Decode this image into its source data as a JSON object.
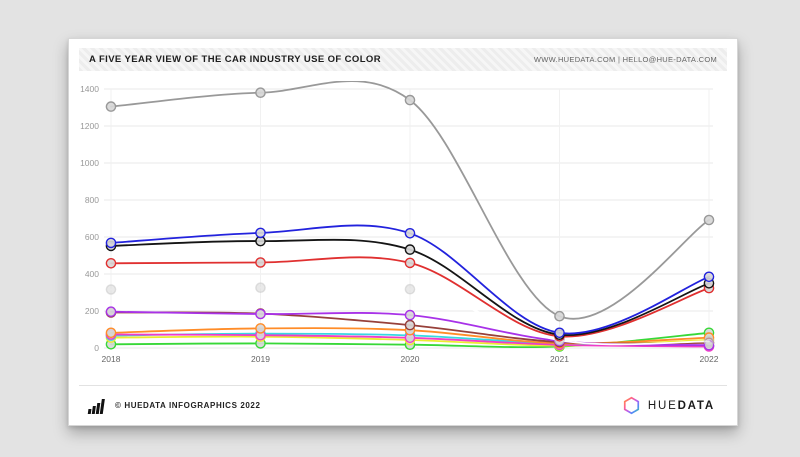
{
  "page": {
    "background": "#e3e3e3",
    "card_background": "#ffffff"
  },
  "header": {
    "title": "A FIVE YEAR VIEW OF THE CAR INDUSTRY USE OF COLOR",
    "contact": "WWW.HUEDATA.COM | HELLO@HUE-DATA.COM"
  },
  "footer": {
    "copyright": "© HUEDATA INFOGRAPHICS 2022",
    "logo_text_light": "HUE",
    "logo_text_bold": "DATA",
    "logo_hexagon_colors": [
      "#ff9a3c",
      "#ff5e8e",
      "#b85ef0",
      "#4f8ef7",
      "#3ecf8e"
    ]
  },
  "chart_data": {
    "type": "line",
    "title": "A FIVE YEAR VIEW OF THE CAR INDUSTRY USE OF COLOR",
    "xlabel": "",
    "ylabel": "",
    "categories": [
      "2018",
      "2019",
      "2020",
      "2021",
      "2022"
    ],
    "y_ticks": [
      0,
      200,
      400,
      600,
      800,
      1000,
      1200,
      1400
    ],
    "ylim": [
      0,
      1400
    ],
    "grid": true,
    "legend": "none",
    "marker_fill": "#d7d7d7",
    "grid_color_h": "#e8e8e8",
    "grid_color_v": "#f1f1f1",
    "tick_color_y": "#999999",
    "tick_color_x": "#666666",
    "series": [
      {
        "name": "gray",
        "color": "#999999",
        "values": [
          1305,
          1380,
          1340,
          172,
          692
        ]
      },
      {
        "name": "blue",
        "color": "#2222dd",
        "values": [
          568,
          622,
          620,
          82,
          385
        ]
      },
      {
        "name": "black",
        "color": "#151515",
        "values": [
          552,
          578,
          532,
          72,
          350
        ]
      },
      {
        "name": "red",
        "color": "#e03030",
        "values": [
          458,
          462,
          460,
          63,
          324
        ]
      },
      {
        "name": "white",
        "color": "#ffffff",
        "marker_stroke": "#c6c6c6",
        "marker_opacity": 0.55,
        "values": [
          316,
          326,
          318,
          42,
          36
        ]
      },
      {
        "name": "purple",
        "color": "#a832e8",
        "values": [
          196,
          184,
          178,
          38,
          15
        ]
      },
      {
        "name": "maroon",
        "color": "#97403a",
        "values": [
          192,
          186,
          124,
          32,
          28
        ]
      },
      {
        "name": "orange",
        "color": "#ff8c28",
        "values": [
          82,
          106,
          96,
          26,
          56
        ]
      },
      {
        "name": "magenta",
        "color": "#f03cc8",
        "values": [
          73,
          69,
          55,
          17,
          8
        ]
      },
      {
        "name": "cyan",
        "color": "#38d8e0",
        "values": [
          67,
          78,
          68,
          22,
          10
        ]
      },
      {
        "name": "yellow",
        "color": "#ecec30",
        "values": [
          56,
          61,
          43,
          13,
          44
        ]
      },
      {
        "name": "green",
        "color": "#38d838",
        "values": [
          20,
          25,
          18,
          8,
          82
        ]
      }
    ]
  }
}
